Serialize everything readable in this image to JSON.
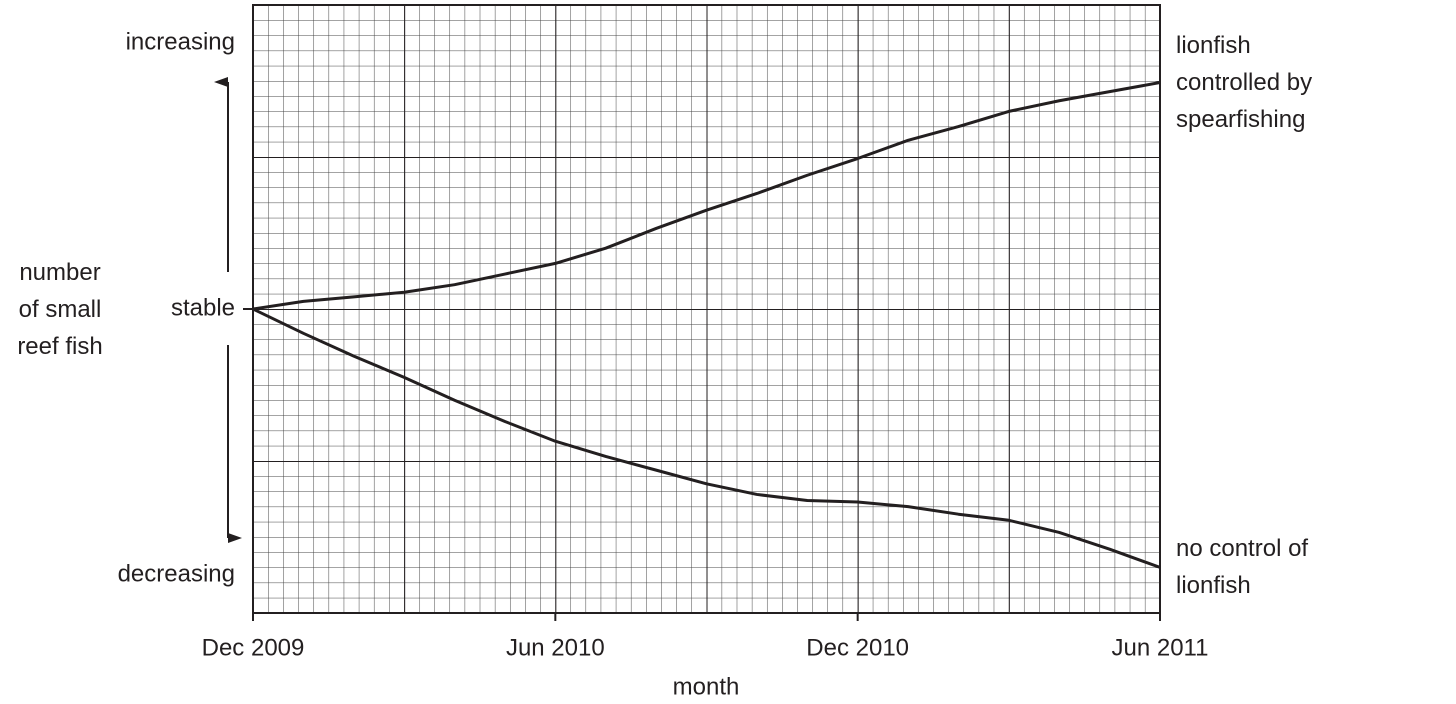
{
  "chart_data": {
    "type": "line",
    "x_label": "month",
    "y_label": "number of small reef fish",
    "categories": [
      "Dec 2009",
      null,
      null,
      null,
      null,
      null,
      "Jun 2010",
      null,
      null,
      null,
      null,
      null,
      "Dec 2010",
      null,
      null,
      null,
      null,
      null,
      "Jun 2011"
    ],
    "ylim": [
      -20,
      20
    ],
    "yticks": [
      {
        "value": 17.5,
        "label": "increasing"
      },
      {
        "value": 0,
        "label": "stable"
      },
      {
        "value": -17.5,
        "label": "decreasing"
      }
    ],
    "grid": true,
    "series": [
      {
        "name": "lionfish controlled by spearfishing",
        "color": "#231f20",
        "values": [
          0,
          0.5,
          0.8,
          1.1,
          1.6,
          2.3,
          3.0,
          4.0,
          5.3,
          6.5,
          7.6,
          8.8,
          9.9,
          11.1,
          12.0,
          13.0,
          13.7,
          14.3,
          14.9
        ]
      },
      {
        "name": "no control of lionfish",
        "color": "#231f20",
        "values": [
          0,
          -1.6,
          -3.1,
          -4.5,
          -6.0,
          -7.4,
          -8.7,
          -9.7,
          -10.6,
          -11.5,
          -12.2,
          -12.6,
          -12.7,
          -13.0,
          -13.5,
          -13.9,
          -14.7,
          -15.8,
          -17.0
        ]
      }
    ]
  }
}
